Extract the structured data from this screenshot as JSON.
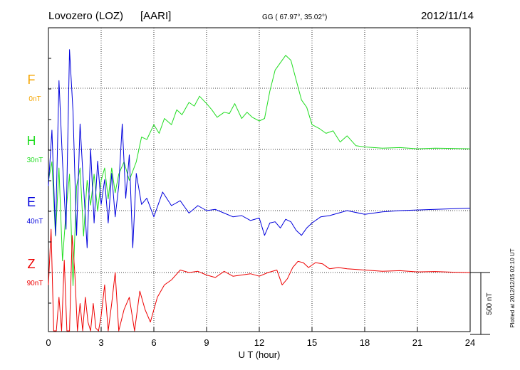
{
  "header": {
    "station": "Lovozero (LOZ)",
    "institute": "[AARI]",
    "coords": "GG ( 67.97°,  35.02°)",
    "date": "2012/11/14"
  },
  "side_note": "Plotted at 2012/12/15 02:10 UT",
  "scale_label": "500 nT",
  "chart_data": {
    "type": "line",
    "title": "",
    "xlabel": "U T (hour)",
    "ylabel": "",
    "xlim": [
      0,
      24
    ],
    "xticks": [
      "0",
      "3",
      "6",
      "9",
      "12",
      "15",
      "18",
      "21",
      "24"
    ],
    "grid": true,
    "scale_bar_nT": 500,
    "components": [
      {
        "name": "F",
        "offset": "0nT",
        "color": "#f5a500"
      },
      {
        "name": "H",
        "offset": "30nT",
        "color": "#22dd22"
      },
      {
        "name": "E",
        "offset": "40nT",
        "color": "#0000dd"
      },
      {
        "name": "Z",
        "offset": "90nT",
        "color": "#ee0000"
      }
    ],
    "series": [
      {
        "name": "H",
        "color": "#22dd22",
        "x": [
          0,
          0.2,
          0.4,
          0.6,
          0.8,
          1.0,
          1.2,
          1.4,
          1.6,
          1.8,
          2.0,
          2.2,
          2.4,
          2.6,
          2.8,
          3.0,
          3.2,
          3.4,
          3.6,
          3.8,
          4.0,
          4.3,
          4.6,
          5.0,
          5.3,
          5.6,
          6.0,
          6.3,
          6.6,
          7.0,
          7.3,
          7.6,
          8.0,
          8.3,
          8.6,
          9.0,
          9.3,
          9.6,
          10.0,
          10.3,
          10.6,
          11.0,
          11.3,
          11.6,
          12.0,
          12.3,
          12.6,
          12.9,
          13.2,
          13.5,
          13.8,
          14.1,
          14.4,
          14.7,
          15.0,
          15.4,
          15.8,
          16.2,
          16.6,
          17.0,
          17.5,
          18.0,
          19.0,
          20.0,
          21.0,
          22.0,
          23.0,
          24.0
        ],
        "nT": [
          -250,
          -100,
          -700,
          -150,
          -900,
          -500,
          -200,
          -1100,
          -300,
          -150,
          -700,
          -250,
          -450,
          -200,
          -500,
          -250,
          -150,
          -400,
          -150,
          -350,
          -200,
          -100,
          -250,
          -100,
          100,
          80,
          200,
          130,
          250,
          200,
          320,
          280,
          380,
          350,
          430,
          370,
          320,
          260,
          300,
          290,
          370,
          250,
          300,
          260,
          230,
          250,
          470,
          640,
          700,
          760,
          720,
          560,
          400,
          340,
          200,
          170,
          130,
          150,
          60,
          110,
          30,
          20,
          10,
          15,
          5,
          10,
          8,
          5
        ]
      },
      {
        "name": "E",
        "color": "#0000dd",
        "x": [
          0,
          0.2,
          0.4,
          0.6,
          0.8,
          1.0,
          1.2,
          1.4,
          1.6,
          1.8,
          2.0,
          2.2,
          2.4,
          2.6,
          2.8,
          3.0,
          3.2,
          3.4,
          3.6,
          3.8,
          4.0,
          4.2,
          4.4,
          4.6,
          4.8,
          5.0,
          5.3,
          5.6,
          6.0,
          6.5,
          7.0,
          7.5,
          8.0,
          8.5,
          9.0,
          9.5,
          10.0,
          10.5,
          11.0,
          11.5,
          12.0,
          12.3,
          12.6,
          12.9,
          13.2,
          13.5,
          13.8,
          14.1,
          14.4,
          14.7,
          15.0,
          15.5,
          16.0,
          17.0,
          18.0,
          19.0,
          20.0,
          21.0,
          22.0,
          23.0,
          24.0
        ],
        "nT": [
          200,
          650,
          -200,
          1050,
          400,
          -150,
          1300,
          800,
          -200,
          700,
          200,
          -300,
          500,
          -100,
          400,
          50,
          250,
          -100,
          300,
          -50,
          200,
          700,
          100,
          450,
          -300,
          300,
          50,
          100,
          -50,
          150,
          40,
          80,
          -20,
          40,
          0,
          10,
          -20,
          -50,
          -40,
          -80,
          -60,
          -200,
          -100,
          -90,
          -140,
          -70,
          -90,
          -160,
          -200,
          -140,
          -100,
          -50,
          -40,
          0,
          -30,
          -10,
          0,
          5,
          10,
          15,
          20
        ]
      },
      {
        "name": "Z",
        "color": "#ee0000",
        "x": [
          0,
          0.15,
          0.3,
          0.45,
          0.6,
          0.75,
          0.9,
          1.05,
          1.2,
          1.35,
          1.5,
          1.65,
          1.8,
          1.95,
          2.1,
          2.25,
          2.4,
          2.55,
          2.7,
          2.85,
          3.0,
          3.2,
          3.4,
          3.6,
          3.8,
          4.0,
          4.3,
          4.6,
          4.9,
          5.2,
          5.5,
          5.8,
          6.2,
          6.6,
          7.0,
          7.5,
          8.0,
          8.5,
          9.0,
          9.5,
          10.0,
          10.5,
          11.0,
          11.5,
          12.0,
          12.5,
          13.0,
          13.3,
          13.6,
          13.9,
          14.2,
          14.5,
          14.8,
          15.2,
          15.6,
          16.0,
          16.5,
          17.0,
          18.0,
          19.0,
          20.0,
          21.0,
          22.0,
          23.0,
          24.0
        ],
        "nT": [
          -100,
          350,
          -600,
          -1000,
          -200,
          -1300,
          100,
          -1200,
          -800,
          300,
          0,
          -1100,
          -250,
          -600,
          -200,
          -400,
          -900,
          -250,
          -450,
          -700,
          -350,
          -100,
          -600,
          -250,
          0,
          -500,
          -300,
          -200,
          -550,
          -150,
          -300,
          -400,
          -200,
          -100,
          -60,
          20,
          0,
          10,
          -20,
          -40,
          10,
          -30,
          -20,
          -10,
          -30,
          0,
          20,
          -100,
          -50,
          40,
          90,
          80,
          40,
          80,
          70,
          30,
          40,
          30,
          20,
          10,
          15,
          5,
          8,
          3,
          0
        ]
      }
    ]
  }
}
